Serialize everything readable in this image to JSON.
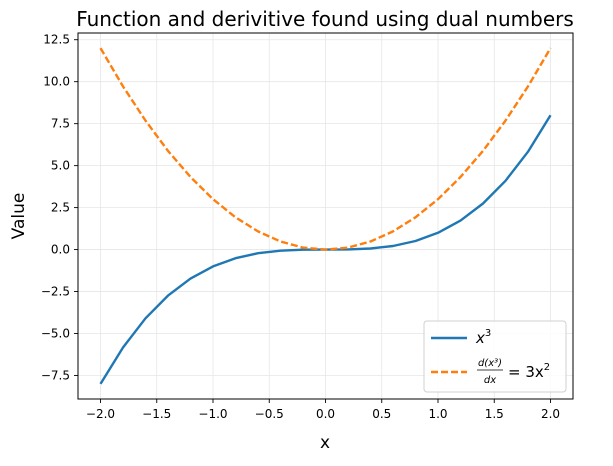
{
  "chart_data": {
    "type": "line",
    "title": "Function and derivitive found using dual numbers",
    "xlabel": "x",
    "ylabel": "Value",
    "xlim": [
      -2.2,
      2.2
    ],
    "ylim": [
      -8.9,
      12.9
    ],
    "grid": true,
    "legend_position": "lower right",
    "x_ticks": [
      -2.0,
      -1.5,
      -1.0,
      -0.5,
      0.0,
      0.5,
      1.0,
      1.5,
      2.0
    ],
    "x_tick_labels": [
      "−2.0",
      "−1.5",
      "−1.0",
      "−0.5",
      "0.0",
      "0.5",
      "1.0",
      "1.5",
      "2.0"
    ],
    "y_ticks": [
      -7.5,
      -5.0,
      -2.5,
      0.0,
      2.5,
      5.0,
      7.5,
      10.0,
      12.5
    ],
    "y_tick_labels": [
      "−7.5",
      "−5.0",
      "−2.5",
      "0.0",
      "2.5",
      "5.0",
      "7.5",
      "10.0",
      "12.5"
    ],
    "x": [
      -2.0,
      -1.8,
      -1.6,
      -1.4,
      -1.2,
      -1.0,
      -0.8,
      -0.6,
      -0.4,
      -0.2,
      0.0,
      0.2,
      0.4,
      0.6,
      0.8,
      1.0,
      1.2,
      1.4,
      1.6,
      1.8,
      2.0
    ],
    "series": [
      {
        "legend_base": "x",
        "legend_exp": "3",
        "color": "#1f77b4",
        "style": "solid",
        "values": [
          -8.0,
          -5.832,
          -4.096,
          -2.744,
          -1.728,
          -1.0,
          -0.512,
          -0.216,
          -0.064,
          -0.008,
          0.0,
          0.008,
          0.064,
          0.216,
          0.512,
          1.0,
          1.728,
          2.744,
          4.096,
          5.832,
          8.0
        ]
      },
      {
        "legend_frac_num": "d(x³)",
        "legend_frac_den": "dx",
        "legend_rhs": "= 3x",
        "legend_rhs_exp": "2",
        "color": "#ff7f0e",
        "style": "dashed",
        "values": [
          12.0,
          9.72,
          7.68,
          5.88,
          4.32,
          3.0,
          1.92,
          1.08,
          0.48,
          0.12,
          0.0,
          0.12,
          0.48,
          1.08,
          1.92,
          3.0,
          4.32,
          5.88,
          7.68,
          9.72,
          12.0
        ]
      }
    ]
  }
}
